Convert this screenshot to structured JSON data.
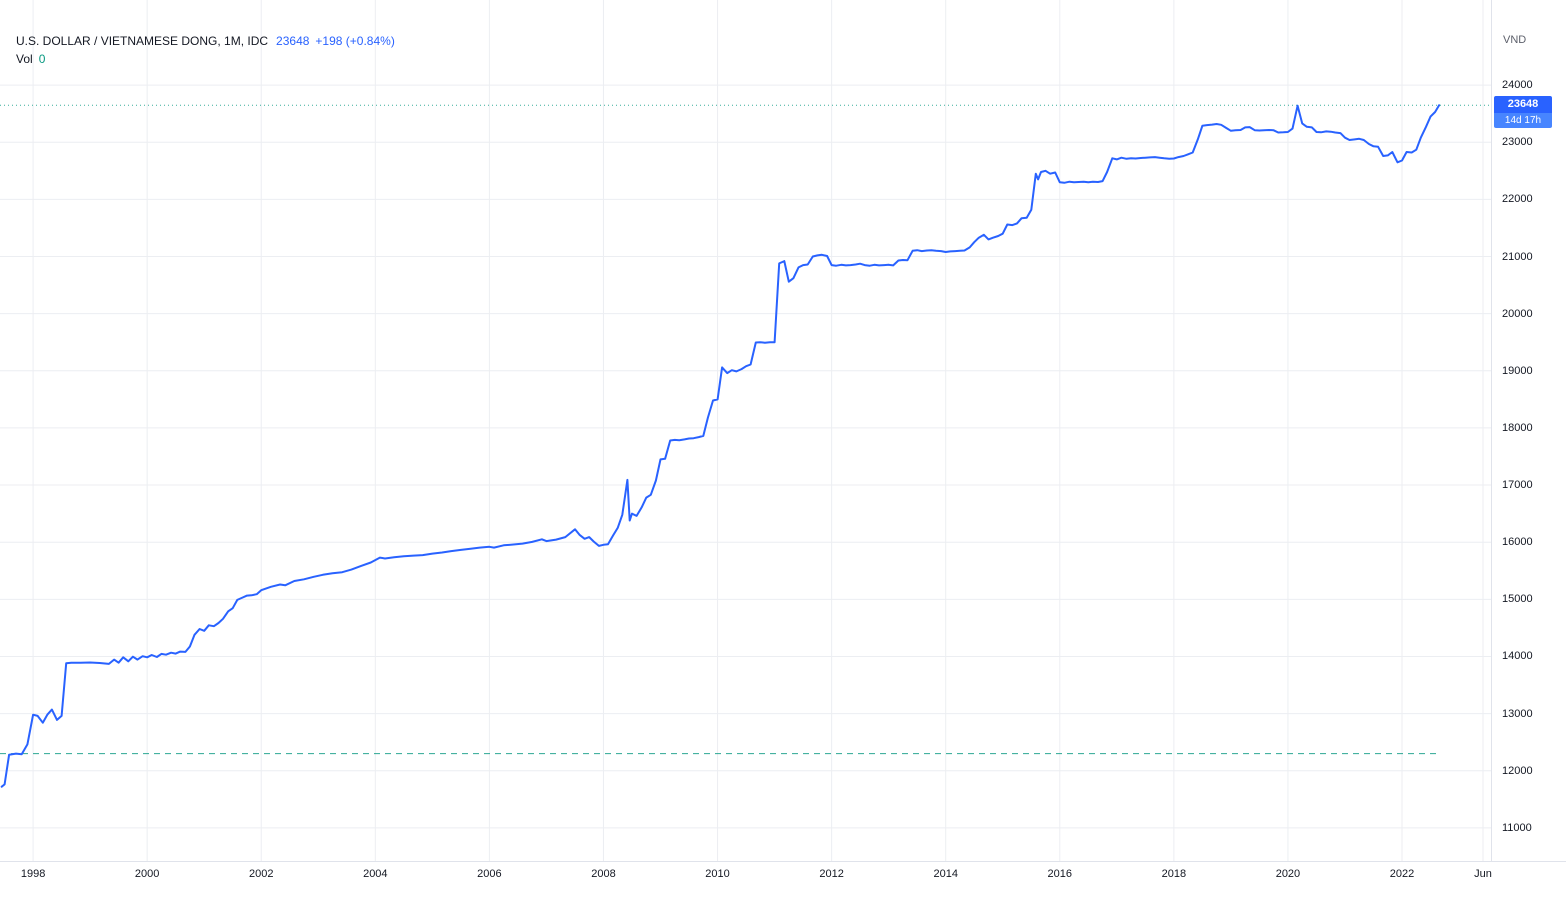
{
  "header": {
    "symbol_title": "U.S. DOLLAR / VIETNAMESE DONG, 1M, IDC",
    "price": "23648",
    "change": "+198 (+0.84%)",
    "vol_label": "Vol",
    "vol_value": "0"
  },
  "axis": {
    "currency_label": "VND",
    "price_badge": "23648",
    "countdown": "14d 17h"
  },
  "colors": {
    "line": "#2962ff",
    "grid": "#eceef2",
    "axis_border": "#e0e3eb",
    "text": "#131722",
    "accent_teal": "#089981",
    "badge": "#2962ff",
    "countdown_badge": "#4785ff"
  },
  "chart_data": {
    "type": "line",
    "title": "U.S. Dollar / Vietnamese Dong, 1M, IDC",
    "ylabel": "VND",
    "xlabel": "",
    "grid": true,
    "legend_position": "top-left",
    "xlim": [
      1997.42,
      2023.56
    ],
    "ylim": [
      10420,
      25490
    ],
    "y_ticks": [
      11000,
      12000,
      13000,
      14000,
      15000,
      16000,
      17000,
      18000,
      19000,
      20000,
      21000,
      22000,
      23000,
      24000
    ],
    "x_ticks": [
      {
        "x": 1998,
        "label": "1998"
      },
      {
        "x": 2000,
        "label": "2000"
      },
      {
        "x": 2002,
        "label": "2002"
      },
      {
        "x": 2004,
        "label": "2004"
      },
      {
        "x": 2006,
        "label": "2006"
      },
      {
        "x": 2008,
        "label": "2008"
      },
      {
        "x": 2010,
        "label": "2010"
      },
      {
        "x": 2012,
        "label": "2012"
      },
      {
        "x": 2014,
        "label": "2014"
      },
      {
        "x": 2016,
        "label": "2016"
      },
      {
        "x": 2018,
        "label": "2018"
      },
      {
        "x": 2020,
        "label": "2020"
      },
      {
        "x": 2022,
        "label": "2022"
      },
      {
        "x": 2023.42,
        "label": "Jun"
      }
    ],
    "last_price": 23648,
    "dashed_level": 12300,
    "series": [
      {
        "name": "USDVND",
        "points": [
          [
            1997.45,
            11720
          ],
          [
            1997.5,
            11760
          ],
          [
            1997.58,
            12280
          ],
          [
            1997.7,
            12300
          ],
          [
            1997.8,
            12290
          ],
          [
            1997.9,
            12460
          ],
          [
            1998.0,
            12980
          ],
          [
            1998.08,
            12960
          ],
          [
            1998.17,
            12840
          ],
          [
            1998.25,
            12980
          ],
          [
            1998.33,
            13070
          ],
          [
            1998.42,
            12890
          ],
          [
            1998.5,
            12960
          ],
          [
            1998.58,
            13880
          ],
          [
            1998.67,
            13890
          ],
          [
            1998.83,
            13890
          ],
          [
            1999.0,
            13895
          ],
          [
            1999.17,
            13885
          ],
          [
            1999.33,
            13870
          ],
          [
            1999.42,
            13945
          ],
          [
            1999.5,
            13890
          ],
          [
            1999.58,
            13985
          ],
          [
            1999.67,
            13915
          ],
          [
            1999.75,
            13995
          ],
          [
            1999.83,
            13945
          ],
          [
            1999.92,
            14005
          ],
          [
            2000.0,
            13985
          ],
          [
            2000.08,
            14025
          ],
          [
            2000.17,
            13990
          ],
          [
            2000.25,
            14045
          ],
          [
            2000.33,
            14030
          ],
          [
            2000.42,
            14065
          ],
          [
            2000.5,
            14050
          ],
          [
            2000.58,
            14085
          ],
          [
            2000.67,
            14080
          ],
          [
            2000.75,
            14175
          ],
          [
            2000.83,
            14380
          ],
          [
            2000.92,
            14480
          ],
          [
            2001.0,
            14450
          ],
          [
            2001.08,
            14545
          ],
          [
            2001.17,
            14530
          ],
          [
            2001.25,
            14585
          ],
          [
            2001.33,
            14660
          ],
          [
            2001.42,
            14790
          ],
          [
            2001.5,
            14845
          ],
          [
            2001.58,
            14990
          ],
          [
            2001.67,
            15030
          ],
          [
            2001.75,
            15065
          ],
          [
            2001.83,
            15070
          ],
          [
            2001.92,
            15090
          ],
          [
            2002.0,
            15160
          ],
          [
            2002.17,
            15220
          ],
          [
            2002.33,
            15260
          ],
          [
            2002.42,
            15245
          ],
          [
            2002.58,
            15320
          ],
          [
            2002.75,
            15350
          ],
          [
            2002.92,
            15395
          ],
          [
            2003.08,
            15430
          ],
          [
            2003.25,
            15455
          ],
          [
            2003.42,
            15475
          ],
          [
            2003.58,
            15520
          ],
          [
            2003.75,
            15585
          ],
          [
            2003.92,
            15645
          ],
          [
            2004.08,
            15730
          ],
          [
            2004.17,
            15715
          ],
          [
            2004.33,
            15735
          ],
          [
            2004.5,
            15755
          ],
          [
            2004.67,
            15765
          ],
          [
            2004.83,
            15775
          ],
          [
            2005.0,
            15800
          ],
          [
            2005.17,
            15820
          ],
          [
            2005.33,
            15845
          ],
          [
            2005.5,
            15865
          ],
          [
            2005.67,
            15885
          ],
          [
            2005.83,
            15905
          ],
          [
            2006.0,
            15920
          ],
          [
            2006.08,
            15905
          ],
          [
            2006.25,
            15945
          ],
          [
            2006.42,
            15960
          ],
          [
            2006.58,
            15975
          ],
          [
            2006.75,
            16005
          ],
          [
            2006.92,
            16050
          ],
          [
            2007.0,
            16020
          ],
          [
            2007.17,
            16045
          ],
          [
            2007.33,
            16090
          ],
          [
            2007.5,
            16225
          ],
          [
            2007.58,
            16130
          ],
          [
            2007.67,
            16060
          ],
          [
            2007.75,
            16090
          ],
          [
            2007.83,
            16010
          ],
          [
            2007.92,
            15935
          ],
          [
            2008.0,
            15955
          ],
          [
            2008.08,
            15965
          ],
          [
            2008.17,
            16120
          ],
          [
            2008.25,
            16250
          ],
          [
            2008.33,
            16480
          ],
          [
            2008.42,
            17090
          ],
          [
            2008.46,
            16380
          ],
          [
            2008.5,
            16500
          ],
          [
            2008.58,
            16460
          ],
          [
            2008.67,
            16610
          ],
          [
            2008.75,
            16780
          ],
          [
            2008.83,
            16830
          ],
          [
            2008.92,
            17080
          ],
          [
            2009.0,
            17450
          ],
          [
            2009.08,
            17460
          ],
          [
            2009.17,
            17780
          ],
          [
            2009.25,
            17790
          ],
          [
            2009.33,
            17785
          ],
          [
            2009.42,
            17800
          ],
          [
            2009.5,
            17815
          ],
          [
            2009.58,
            17820
          ],
          [
            2009.67,
            17840
          ],
          [
            2009.75,
            17860
          ],
          [
            2009.83,
            18180
          ],
          [
            2009.92,
            18480
          ],
          [
            2010.0,
            18500
          ],
          [
            2010.08,
            19060
          ],
          [
            2010.17,
            18960
          ],
          [
            2010.25,
            19010
          ],
          [
            2010.33,
            18990
          ],
          [
            2010.42,
            19030
          ],
          [
            2010.5,
            19080
          ],
          [
            2010.58,
            19110
          ],
          [
            2010.67,
            19495
          ],
          [
            2010.75,
            19500
          ],
          [
            2010.83,
            19490
          ],
          [
            2010.92,
            19498
          ],
          [
            2011.0,
            19500
          ],
          [
            2011.08,
            20880
          ],
          [
            2011.17,
            20920
          ],
          [
            2011.25,
            20560
          ],
          [
            2011.33,
            20620
          ],
          [
            2011.42,
            20810
          ],
          [
            2011.5,
            20850
          ],
          [
            2011.58,
            20860
          ],
          [
            2011.67,
            21000
          ],
          [
            2011.75,
            21020
          ],
          [
            2011.83,
            21030
          ],
          [
            2011.92,
            21010
          ],
          [
            2012.0,
            20850
          ],
          [
            2012.08,
            20840
          ],
          [
            2012.17,
            20855
          ],
          [
            2012.25,
            20845
          ],
          [
            2012.33,
            20850
          ],
          [
            2012.42,
            20860
          ],
          [
            2012.5,
            20875
          ],
          [
            2012.58,
            20850
          ],
          [
            2012.67,
            20840
          ],
          [
            2012.75,
            20855
          ],
          [
            2012.83,
            20845
          ],
          [
            2012.92,
            20850
          ],
          [
            2013.0,
            20855
          ],
          [
            2013.08,
            20845
          ],
          [
            2013.17,
            20930
          ],
          [
            2013.25,
            20940
          ],
          [
            2013.33,
            20935
          ],
          [
            2013.42,
            21100
          ],
          [
            2013.5,
            21110
          ],
          [
            2013.58,
            21095
          ],
          [
            2013.67,
            21105
          ],
          [
            2013.75,
            21110
          ],
          [
            2013.83,
            21100
          ],
          [
            2013.92,
            21095
          ],
          [
            2014.0,
            21080
          ],
          [
            2014.08,
            21090
          ],
          [
            2014.17,
            21095
          ],
          [
            2014.25,
            21100
          ],
          [
            2014.33,
            21105
          ],
          [
            2014.42,
            21160
          ],
          [
            2014.5,
            21250
          ],
          [
            2014.58,
            21330
          ],
          [
            2014.67,
            21380
          ],
          [
            2014.75,
            21300
          ],
          [
            2014.83,
            21330
          ],
          [
            2014.92,
            21360
          ],
          [
            2015.0,
            21400
          ],
          [
            2015.08,
            21560
          ],
          [
            2015.17,
            21550
          ],
          [
            2015.25,
            21580
          ],
          [
            2015.33,
            21670
          ],
          [
            2015.42,
            21680
          ],
          [
            2015.5,
            21820
          ],
          [
            2015.58,
            22450
          ],
          [
            2015.62,
            22350
          ],
          [
            2015.67,
            22480
          ],
          [
            2015.75,
            22500
          ],
          [
            2015.83,
            22450
          ],
          [
            2015.92,
            22470
          ],
          [
            2016.0,
            22300
          ],
          [
            2016.08,
            22290
          ],
          [
            2016.17,
            22310
          ],
          [
            2016.25,
            22300
          ],
          [
            2016.33,
            22305
          ],
          [
            2016.42,
            22310
          ],
          [
            2016.5,
            22300
          ],
          [
            2016.58,
            22310
          ],
          [
            2016.67,
            22305
          ],
          [
            2016.75,
            22320
          ],
          [
            2016.83,
            22480
          ],
          [
            2016.92,
            22720
          ],
          [
            2017.0,
            22700
          ],
          [
            2017.08,
            22730
          ],
          [
            2017.17,
            22710
          ],
          [
            2017.25,
            22720
          ],
          [
            2017.33,
            22715
          ],
          [
            2017.42,
            22725
          ],
          [
            2017.5,
            22730
          ],
          [
            2017.58,
            22735
          ],
          [
            2017.67,
            22740
          ],
          [
            2017.75,
            22730
          ],
          [
            2017.83,
            22720
          ],
          [
            2017.92,
            22710
          ],
          [
            2018.0,
            22715
          ],
          [
            2018.08,
            22740
          ],
          [
            2018.17,
            22760
          ],
          [
            2018.25,
            22790
          ],
          [
            2018.33,
            22820
          ],
          [
            2018.42,
            23050
          ],
          [
            2018.5,
            23290
          ],
          [
            2018.58,
            23300
          ],
          [
            2018.67,
            23310
          ],
          [
            2018.75,
            23320
          ],
          [
            2018.83,
            23305
          ],
          [
            2018.92,
            23250
          ],
          [
            2019.0,
            23200
          ],
          [
            2019.08,
            23210
          ],
          [
            2019.17,
            23215
          ],
          [
            2019.25,
            23260
          ],
          [
            2019.33,
            23265
          ],
          [
            2019.42,
            23210
          ],
          [
            2019.5,
            23205
          ],
          [
            2019.58,
            23210
          ],
          [
            2019.67,
            23215
          ],
          [
            2019.75,
            23210
          ],
          [
            2019.83,
            23170
          ],
          [
            2019.92,
            23175
          ],
          [
            2020.0,
            23180
          ],
          [
            2020.08,
            23240
          ],
          [
            2020.17,
            23640
          ],
          [
            2020.25,
            23330
          ],
          [
            2020.33,
            23270
          ],
          [
            2020.42,
            23260
          ],
          [
            2020.5,
            23180
          ],
          [
            2020.58,
            23175
          ],
          [
            2020.67,
            23190
          ],
          [
            2020.75,
            23185
          ],
          [
            2020.83,
            23170
          ],
          [
            2020.92,
            23160
          ],
          [
            2021.0,
            23080
          ],
          [
            2021.08,
            23040
          ],
          [
            2021.17,
            23050
          ],
          [
            2021.25,
            23060
          ],
          [
            2021.33,
            23040
          ],
          [
            2021.42,
            22970
          ],
          [
            2021.5,
            22930
          ],
          [
            2021.58,
            22920
          ],
          [
            2021.67,
            22760
          ],
          [
            2021.75,
            22770
          ],
          [
            2021.83,
            22830
          ],
          [
            2021.92,
            22650
          ],
          [
            2022.0,
            22680
          ],
          [
            2022.08,
            22830
          ],
          [
            2022.17,
            22820
          ],
          [
            2022.25,
            22870
          ],
          [
            2022.33,
            23080
          ],
          [
            2022.42,
            23270
          ],
          [
            2022.5,
            23450
          ],
          [
            2022.58,
            23530
          ],
          [
            2022.65,
            23648
          ]
        ]
      }
    ]
  }
}
